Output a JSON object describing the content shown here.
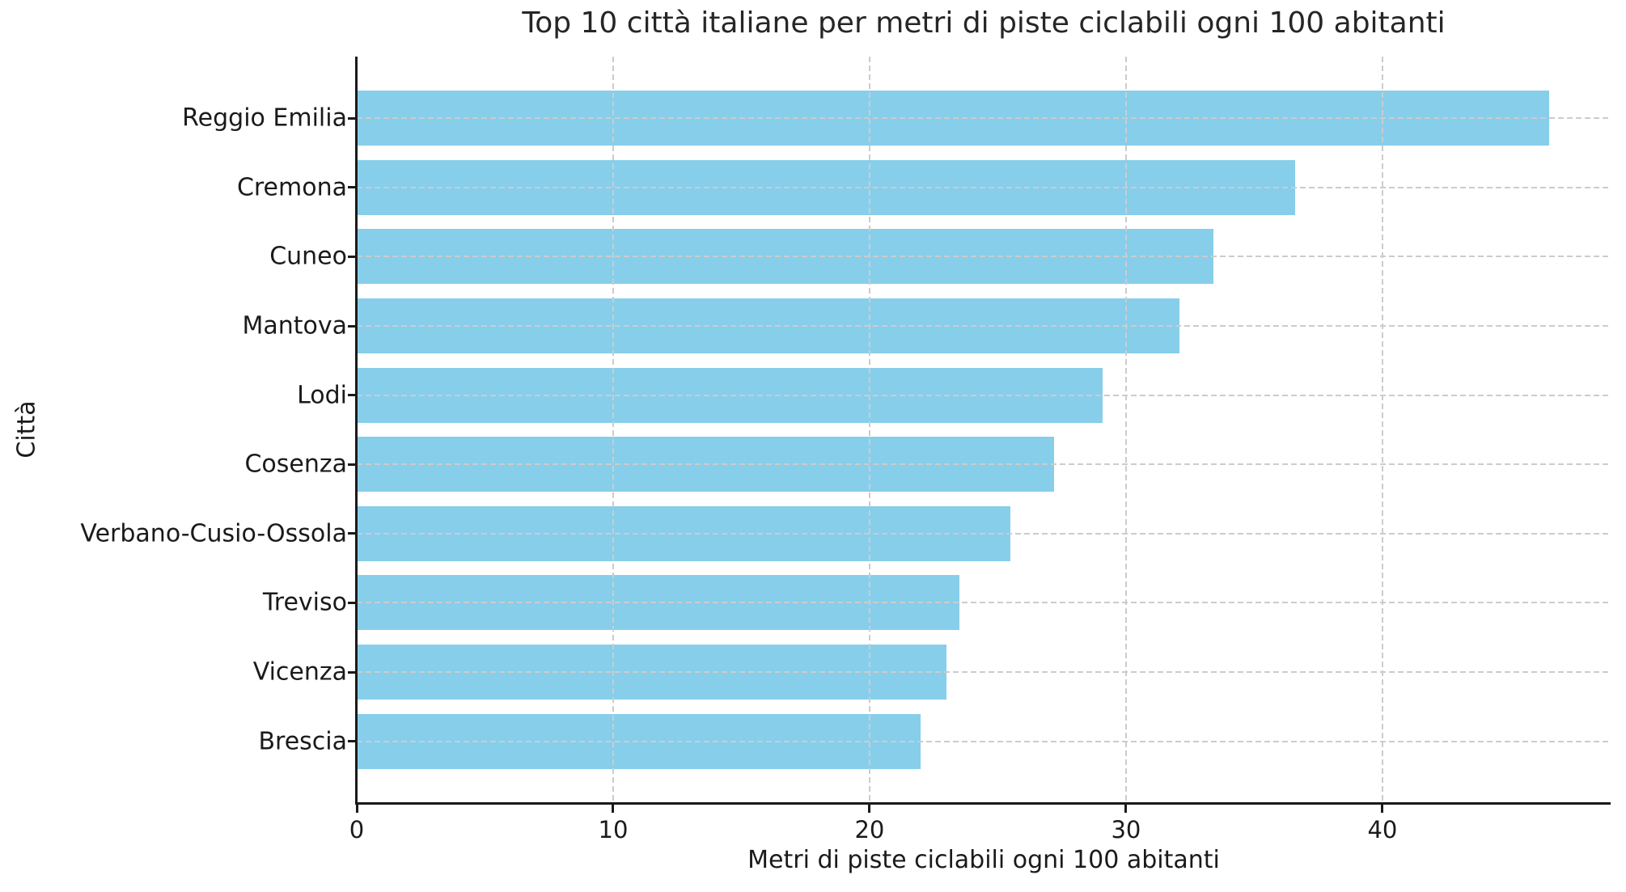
{
  "chart_data": {
    "type": "bar",
    "orientation": "horizontal",
    "title": "Top 10 città italiane per metri di piste ciclabili ogni 100 abitanti",
    "xlabel": "Metri di piste ciclabili ogni 100 abitanti",
    "ylabel": "Città",
    "categories": [
      "Reggio Emilia",
      "Cremona",
      "Cuneo",
      "Mantova",
      "Lodi",
      "Cosenza",
      "Verbano-Cusio-Ossola",
      "Treviso",
      "Vicenza",
      "Brescia"
    ],
    "values": [
      46.5,
      36.6,
      33.4,
      32.1,
      29.1,
      27.2,
      25.5,
      23.5,
      23.0,
      22.0
    ],
    "xlim": [
      0,
      48.9
    ],
    "xticks": [
      0,
      10,
      20,
      30,
      40
    ],
    "bar_color": "#87CEEB",
    "grid": {
      "show": true,
      "style": "dashed",
      "color": "#cccccc",
      "above_bars": true
    },
    "legend": "none",
    "text_color": "#262626",
    "spine_color": "#1a1a1a"
  }
}
